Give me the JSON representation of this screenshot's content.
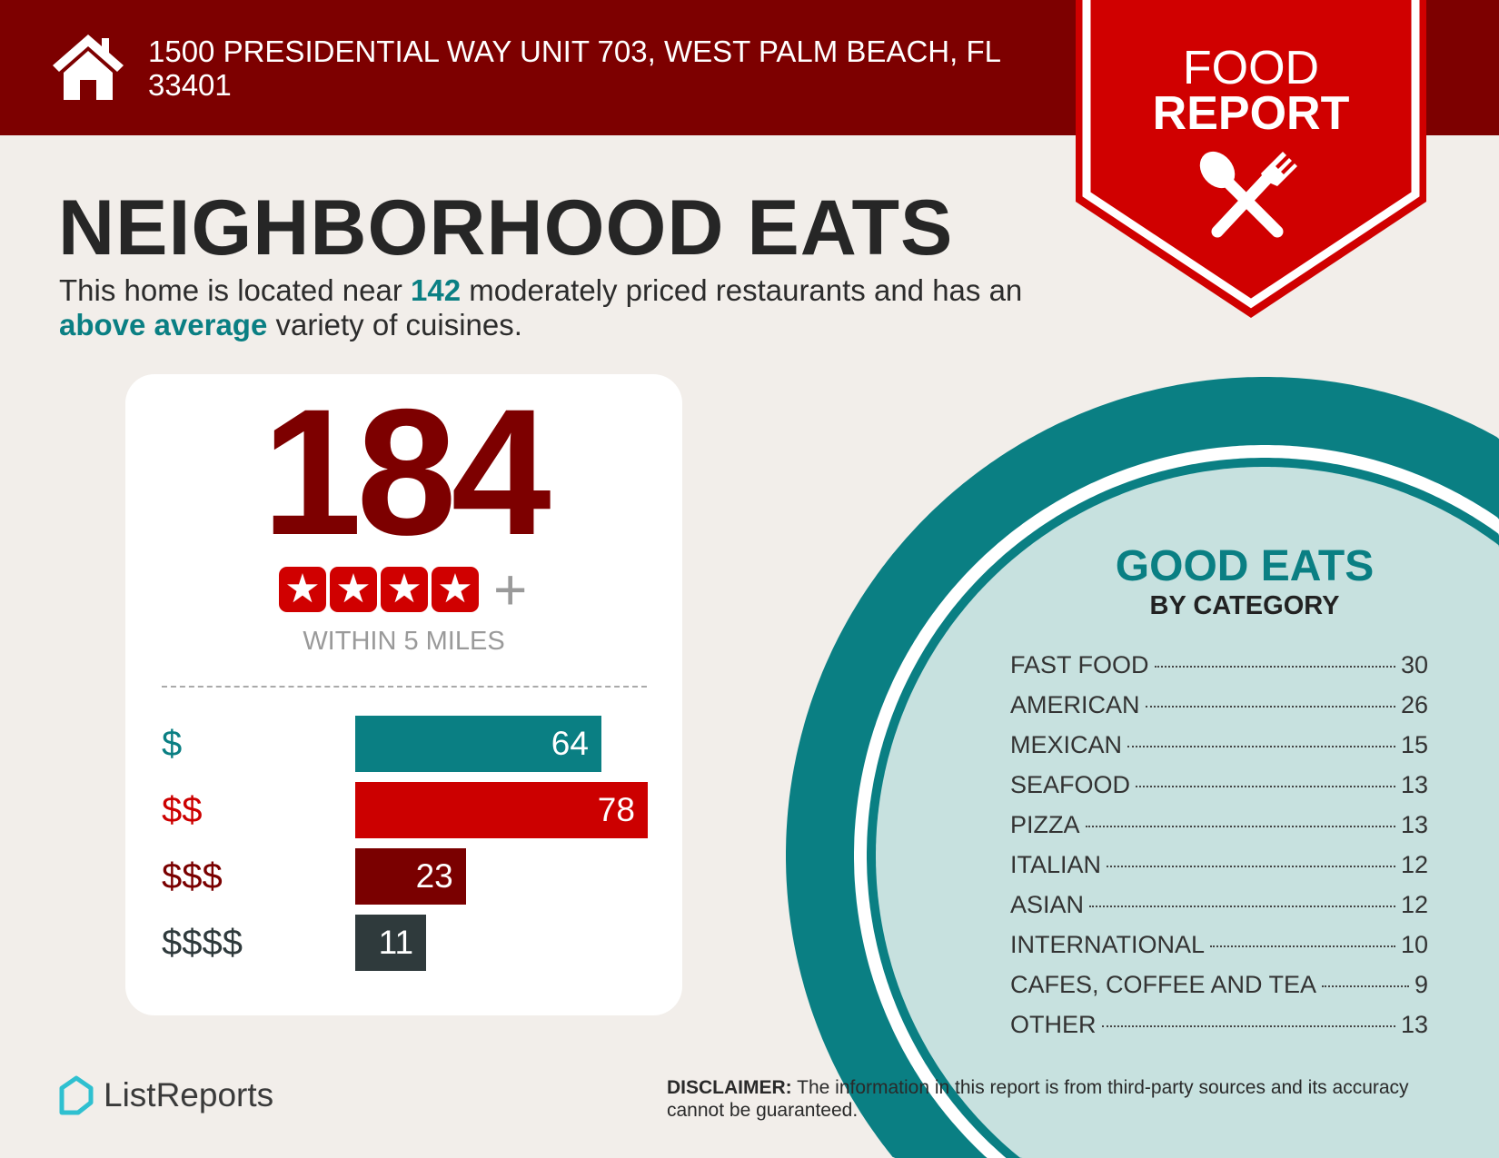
{
  "header": {
    "address": "1500 PRESIDENTIAL WAY UNIT 703, WEST PALM BEACH, FL 33401",
    "icon": "house-icon"
  },
  "badge": {
    "line1": "FOOD",
    "line2": "REPORT",
    "icon": "spoon-fork-icon"
  },
  "title": "NEIGHBORHOOD EATS",
  "subtitle": {
    "pre": "This home is located near ",
    "count": "142",
    "mid": " moderately priced restaurants and has an ",
    "variety": "above average",
    "post": " variety of cuisines."
  },
  "summary": {
    "total": "184",
    "stars": 4,
    "plus": "+",
    "radius_label": "WITHIN 5 MILES"
  },
  "price_tiers": [
    {
      "label": "$",
      "value": 64,
      "color": "#0a7f83"
    },
    {
      "label": "$$",
      "value": 78,
      "color": "#cc0000"
    },
    {
      "label": "$$$",
      "value": 23,
      "color": "#7a0000"
    },
    {
      "label": "$$$$",
      "value": 11,
      "color": "#2f3a3c"
    }
  ],
  "categories": {
    "title": "GOOD EATS",
    "subtitle": "BY CATEGORY",
    "items": [
      {
        "name": "FAST FOOD",
        "count": "30"
      },
      {
        "name": "AMERICAN",
        "count": "26"
      },
      {
        "name": "MEXICAN",
        "count": "15"
      },
      {
        "name": "SEAFOOD",
        "count": "13"
      },
      {
        "name": "PIZZA",
        "count": "13"
      },
      {
        "name": "ITALIAN",
        "count": "12"
      },
      {
        "name": "ASIAN",
        "count": "12"
      },
      {
        "name": "INTERNATIONAL",
        "count": "10"
      },
      {
        "name": "CAFES, COFFEE AND TEA",
        "count": "9"
      },
      {
        "name": "OTHER",
        "count": "13"
      }
    ]
  },
  "footer": {
    "logo": "ListReports",
    "disclaimer_label": "DISCLAIMER:",
    "disclaimer_text": " The information in this report is from third-party sources and its accuracy cannot be guaranteed."
  },
  "colors": {
    "header": "#7d0000",
    "badge": "#d00000",
    "teal": "#0a7f83",
    "light_teal": "#c7e1df",
    "background": "#f2eeea"
  }
}
